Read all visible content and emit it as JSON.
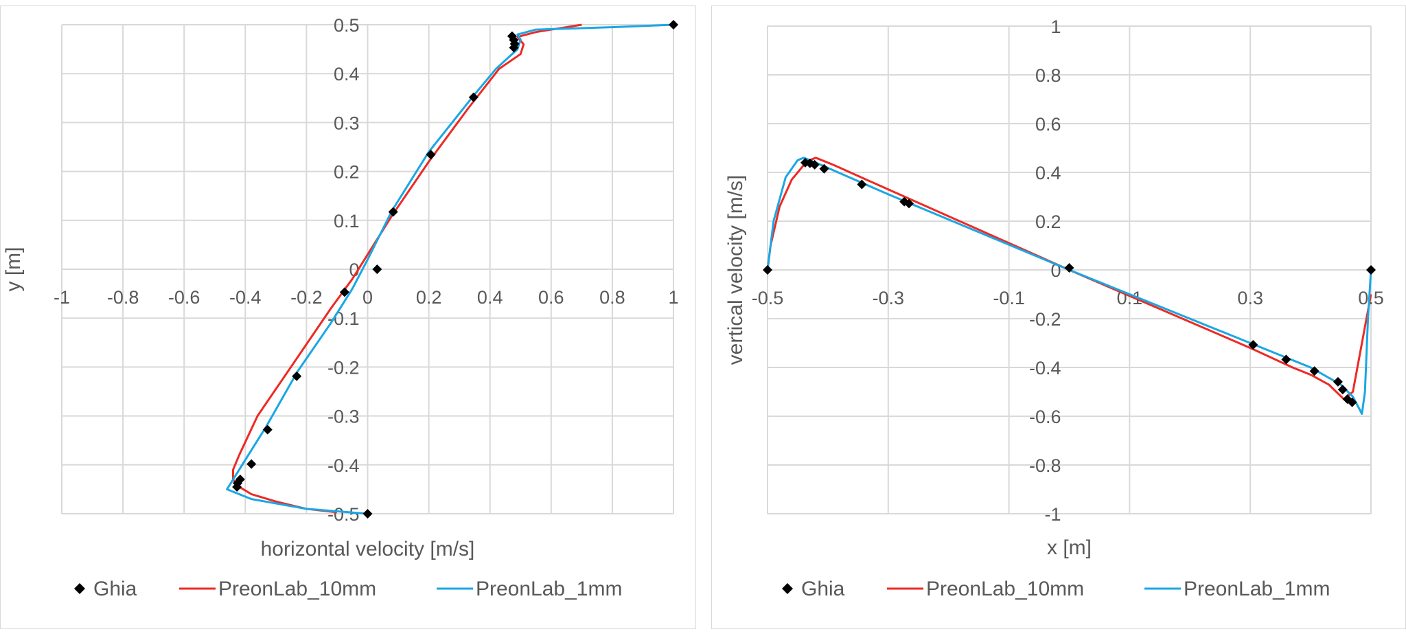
{
  "colors": {
    "ghia": "#000000",
    "coarse": "#ee2a24",
    "fine": "#1aa7e4",
    "grid": "#d9d9d9",
    "text": "#595959"
  },
  "chart_data": [
    {
      "type": "scatter+line",
      "xlabel": "horizontal velocity [m/s]",
      "ylabel": "y [m]",
      "xlim": [
        -1,
        1
      ],
      "ylim": [
        -0.5,
        0.5
      ],
      "xticks": [
        "-1",
        "-0.8",
        "-0.6",
        "-0.4",
        "-0.2",
        "0",
        "0.2",
        "0.4",
        "0.6",
        "0.8",
        "1"
      ],
      "yticks": [
        "0.5",
        "0.4",
        "0.3",
        "0.2",
        "0.1",
        "0",
        "-0.1",
        "-0.2",
        "-0.3",
        "-0.4",
        "-0.5"
      ],
      "grid": true,
      "legend": "bottom",
      "series": [
        {
          "name": "Ghia",
          "kind": "markers",
          "marker": "diamond",
          "x": [
            1,
            0.47221,
            0.47783,
            0.4807,
            0.47804,
            0.34635,
            0.20673,
            0.08344,
            0.03111,
            -0.0754,
            -0.23186,
            -0.32709,
            -0.38,
            -0.41657,
            -0.42537,
            -0.42735,
            0
          ],
          "y": [
            0.5,
            0.4766,
            0.4688,
            0.4609,
            0.4531,
            0.3516,
            0.2344,
            0.1172,
            0,
            -0.0469,
            -0.2187,
            -0.3281,
            -0.3984,
            -0.4297,
            -0.4375,
            -0.4453,
            -0.5
          ]
        },
        {
          "name": "PreonLab_10mm",
          "kind": "line",
          "x": [
            -0.1,
            -0.2,
            -0.3,
            -0.38,
            -0.42,
            -0.44,
            -0.44,
            -0.42,
            -0.36,
            -0.24,
            -0.12,
            -0.05,
            0,
            0.08,
            0.2,
            0.33,
            0.43,
            0.5,
            0.51,
            0.49,
            0.55,
            0.7
          ],
          "y": [
            -0.497,
            -0.49,
            -0.475,
            -0.46,
            -0.445,
            -0.43,
            -0.41,
            -0.38,
            -0.3,
            -0.19,
            -0.08,
            -0.02,
            0.03,
            0.11,
            0.22,
            0.33,
            0.41,
            0.44,
            0.46,
            0.475,
            0.485,
            0.5
          ]
        },
        {
          "name": "PreonLab_1mm",
          "kind": "line",
          "x": [
            0,
            -0.2,
            -0.38,
            -0.46,
            -0.44,
            -0.41,
            -0.38,
            -0.33,
            -0.23,
            -0.12,
            -0.05,
            0,
            0.08,
            0.2,
            0.34,
            0.42,
            0.49,
            0.5,
            0.49,
            0.55,
            0.8,
            1
          ],
          "y": [
            -0.5,
            -0.49,
            -0.47,
            -0.45,
            -0.43,
            -0.4,
            -0.37,
            -0.32,
            -0.21,
            -0.11,
            -0.04,
            0.02,
            0.12,
            0.24,
            0.35,
            0.41,
            0.45,
            0.47,
            0.48,
            0.49,
            0.495,
            0.5
          ]
        }
      ]
    },
    {
      "type": "scatter+line",
      "xlabel": "x [m]",
      "ylabel": "vertical velocity [m/s]",
      "xlim": [
        -0.5,
        0.5
      ],
      "ylim": [
        -1,
        1
      ],
      "xticks": [
        "-0.5",
        "-0.3",
        "-0.1",
        "0.1",
        "0.3",
        "0.5"
      ],
      "yticks": [
        "1",
        "0.8",
        "0.6",
        "0.4",
        "0.2",
        "0",
        "-0.2",
        "-0.4",
        "-0.6",
        "-0.8",
        "-1"
      ],
      "grid": true,
      "legend": "bottom",
      "series": [
        {
          "name": "Ghia",
          "kind": "markers",
          "marker": "diamond",
          "x": [
            0.5,
            0.4688,
            0.4609,
            0.4531,
            0.4453,
            0.4063,
            0.3594,
            0.3047,
            0,
            -0.2656,
            -0.2734,
            -0.3437,
            -0.4062,
            -0.4219,
            -0.4297,
            -0.4375,
            -0.5
          ],
          "y": [
            0,
            -0.54302,
            -0.52987,
            -0.49099,
            -0.45863,
            -0.41496,
            -0.36737,
            -0.30719,
            0.00831,
            0.27224,
            0.28003,
            0.3507,
            0.41487,
            0.43124,
            0.43733,
            0.43983,
            0
          ]
        },
        {
          "name": "PreonLab_10mm",
          "kind": "line",
          "x": [
            -0.5,
            -0.495,
            -0.48,
            -0.46,
            -0.44,
            -0.43,
            -0.42,
            -0.39,
            -0.3,
            0,
            0.3,
            0.37,
            0.4,
            0.43,
            0.455,
            0.47,
            0.485,
            0.5
          ],
          "y": [
            0,
            0.1,
            0.26,
            0.37,
            0.43,
            0.45,
            0.46,
            0.43,
            0.33,
            0,
            -0.32,
            -0.4,
            -0.43,
            -0.47,
            -0.53,
            -0.5,
            -0.3,
            -0.1
          ]
        },
        {
          "name": "PreonLab_1mm",
          "kind": "line",
          "x": [
            -0.5,
            -0.49,
            -0.47,
            -0.45,
            -0.44,
            -0.42,
            -0.3,
            0,
            0.3,
            0.4,
            0.45,
            0.47,
            0.485,
            0.49,
            0.495,
            0.5
          ],
          "y": [
            0,
            0.2,
            0.38,
            0.45,
            0.46,
            0.44,
            0.31,
            0,
            -0.3,
            -0.4,
            -0.47,
            -0.52,
            -0.59,
            -0.5,
            -0.2,
            0
          ]
        }
      ]
    }
  ]
}
